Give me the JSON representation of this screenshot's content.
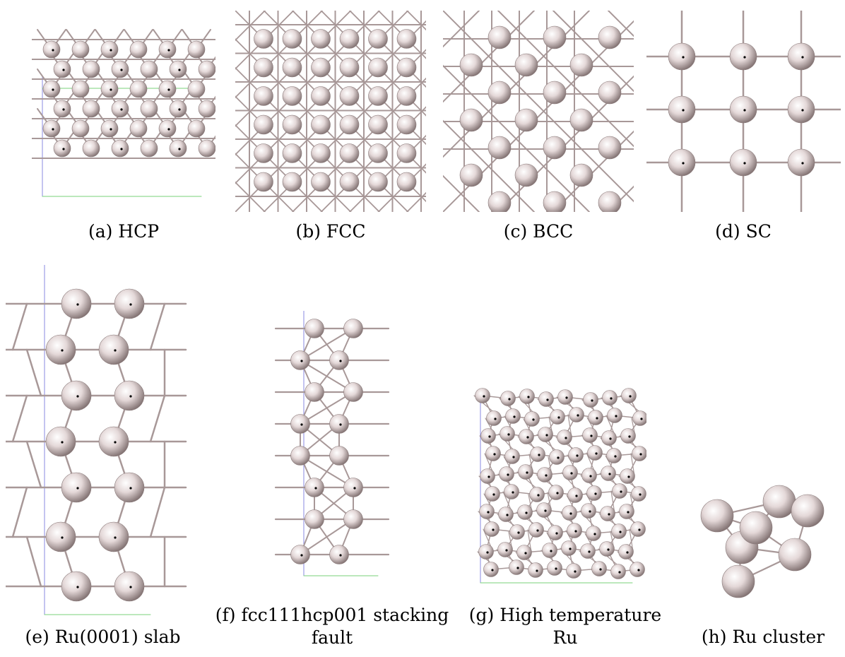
{
  "figure": {
    "panels": [
      {
        "id": "a",
        "caption": "(a) HCP",
        "lattice": "hcp-top"
      },
      {
        "id": "b",
        "caption": "(b) FCC",
        "lattice": "fcc-top"
      },
      {
        "id": "c",
        "caption": "(c) BCC",
        "lattice": "bcc-top"
      },
      {
        "id": "d",
        "caption": "(d) SC",
        "lattice": "sc-top"
      },
      {
        "id": "e",
        "caption_lines": [
          "(e) Ru(0001) slab"
        ],
        "lattice": "slab-side"
      },
      {
        "id": "f",
        "caption_lines": [
          "(f) fcc111hcp001 stacking",
          "fault"
        ],
        "lattice": "stacking-fault-side"
      },
      {
        "id": "g",
        "caption_lines": [
          "(g) High temperature",
          "Ru"
        ],
        "lattice": "disordered"
      },
      {
        "id": "h",
        "caption_lines": [
          "(h) Ru cluster"
        ],
        "lattice": "cluster"
      }
    ],
    "colors": {
      "atom": "#d8c8c8",
      "bond": "#a89898",
      "axis_x": "#7ad27a",
      "axis_y": "#8a8ae0"
    }
  }
}
